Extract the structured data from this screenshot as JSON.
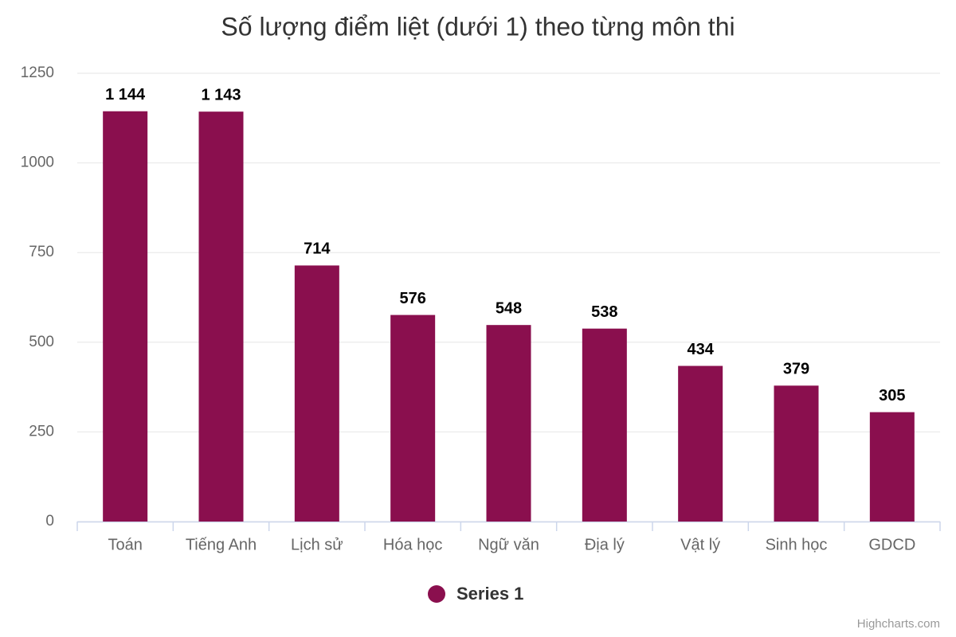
{
  "chart_data": {
    "type": "bar",
    "title": "Số lượng điểm liệt (dưới 1) theo từng môn thi",
    "categories": [
      "Toán",
      "Tiếng Anh",
      "Lịch sử",
      "Hóa học",
      "Ngữ văn",
      "Địa lý",
      "Vật lý",
      "Sinh học",
      "GDCD"
    ],
    "series": [
      {
        "name": "Series 1",
        "color": "#8a0f4e",
        "values": [
          1144,
          1143,
          714,
          576,
          548,
          538,
          434,
          379,
          305
        ],
        "value_labels": [
          "1 144",
          "1 143",
          "714",
          "576",
          "548",
          "538",
          "434",
          "379",
          "305"
        ]
      }
    ],
    "ylim": [
      0,
      1250
    ],
    "yticks": [
      0,
      250,
      500,
      750,
      1000,
      1250
    ],
    "grid": true,
    "legend": "bottom",
    "credits": "Highcharts.com"
  }
}
